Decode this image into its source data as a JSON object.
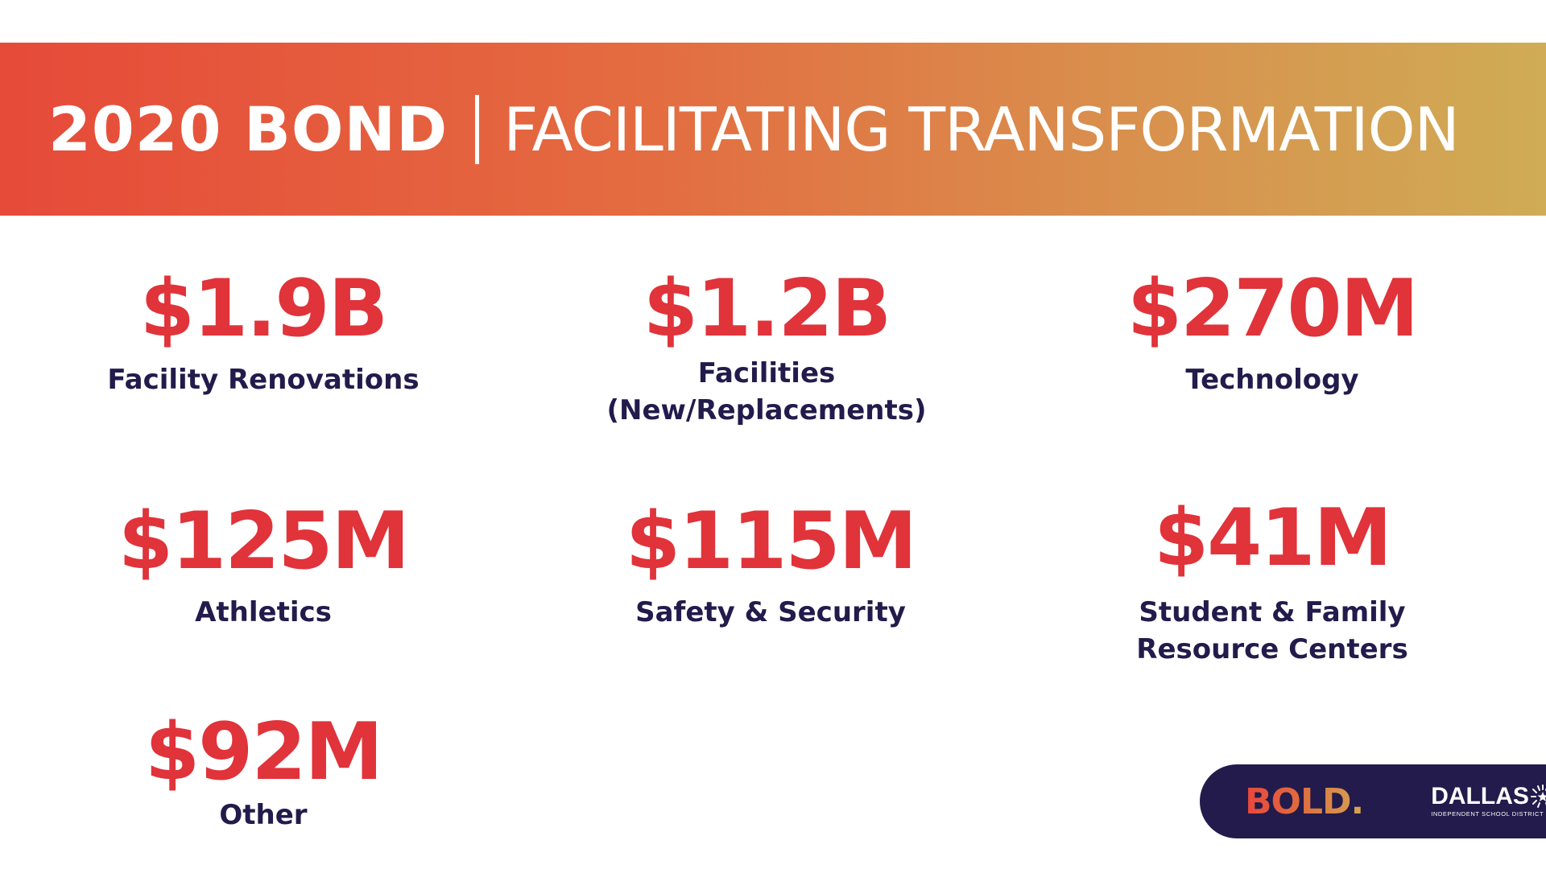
{
  "header": {
    "title_strong": "2020 BOND",
    "title_light": "FACILITATING TRANSFORMATION"
  },
  "stats": [
    {
      "amount": "$1.9B",
      "label": "Facility Renovations"
    },
    {
      "amount": "$1.2B",
      "label_line1": "Facilities",
      "label_line2": "(New/Replacements)"
    },
    {
      "amount": "$270M",
      "label": "Technology"
    },
    {
      "amount": "$125M",
      "label": "Athletics"
    },
    {
      "amount": "$115M",
      "label": "Safety & Security"
    },
    {
      "amount": "$41M",
      "label_line1": "Student & Family",
      "label_line2": "Resource Centers"
    },
    {
      "amount": "$92M",
      "label": "Other"
    }
  ],
  "logos": {
    "bold": "BOLD.",
    "dallas": "DALLAS",
    "dallas_sub": "INDEPENDENT SCHOOL DISTRICT"
  },
  "colors": {
    "accent_red": "#e0333a",
    "navy": "#221b4b",
    "banner_start": "#e64a39",
    "banner_end": "#cfac55"
  }
}
